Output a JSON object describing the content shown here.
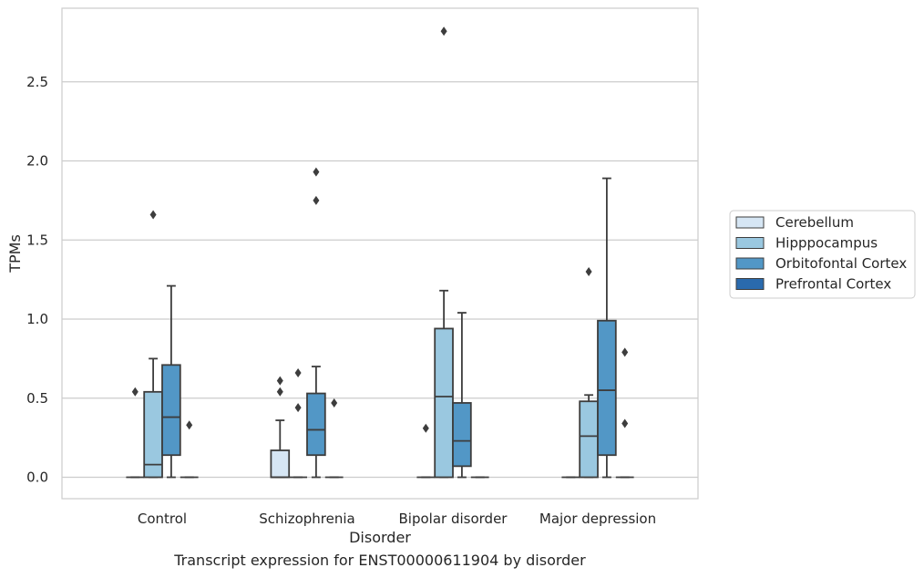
{
  "caption": "Transcript expression for ENST00000611904 by disorder",
  "chart_data": {
    "type": "boxplot",
    "xlabel": "Disorder",
    "ylabel": "TPMs",
    "ylim": [
      -0.14,
      2.97
    ],
    "yticks": [
      0.0,
      0.5,
      1.0,
      1.5,
      2.0,
      2.5
    ],
    "ytick_labels": [
      "0.0",
      "0.5",
      "1.0",
      "1.5",
      "2.0",
      "2.5"
    ],
    "grid": "horizontal",
    "legend_position": "center-right",
    "categories": [
      "Control",
      "Schizophrenia",
      "Bipolar disorder",
      "Major depression"
    ],
    "series": [
      {
        "name": "Cerebellum",
        "color": "#d6e6f4",
        "boxes": [
          {
            "whisker_low": 0,
            "q1": 0,
            "median": 0,
            "q3": 0,
            "whisker_high": 0,
            "outliers": [
              0.54
            ]
          },
          {
            "whisker_low": 0,
            "q1": 0,
            "median": 0,
            "q3": 0.17,
            "whisker_high": 0.36,
            "outliers": [
              0.54,
              0.61
            ]
          },
          {
            "whisker_low": 0,
            "q1": 0,
            "median": 0,
            "q3": 0,
            "whisker_high": 0,
            "outliers": [
              0.31
            ]
          },
          {
            "whisker_low": 0,
            "q1": 0,
            "median": 0,
            "q3": 0,
            "whisker_high": 0,
            "outliers": []
          }
        ]
      },
      {
        "name": "Hipppocampus",
        "color": "#9ac8e0",
        "boxes": [
          {
            "whisker_low": 0,
            "q1": 0,
            "median": 0.08,
            "q3": 0.54,
            "whisker_high": 0.75,
            "outliers": [
              1.66
            ]
          },
          {
            "whisker_low": 0,
            "q1": 0,
            "median": 0,
            "q3": 0,
            "whisker_high": 0,
            "outliers": [
              0.44,
              0.66
            ]
          },
          {
            "whisker_low": 0,
            "q1": 0,
            "median": 0.51,
            "q3": 0.94,
            "whisker_high": 1.18,
            "outliers": [
              2.82
            ]
          },
          {
            "whisker_low": 0,
            "q1": 0,
            "median": 0.26,
            "q3": 0.48,
            "whisker_high": 0.52,
            "outliers": [
              1.3
            ]
          }
        ]
      },
      {
        "name": "Orbitofontal Cortex",
        "color": "#5297c6",
        "boxes": [
          {
            "whisker_low": 0,
            "q1": 0.14,
            "median": 0.38,
            "q3": 0.71,
            "whisker_high": 1.21,
            "outliers": []
          },
          {
            "whisker_low": 0,
            "q1": 0.14,
            "median": 0.3,
            "q3": 0.53,
            "whisker_high": 0.7,
            "outliers": [
              1.75,
              1.93
            ]
          },
          {
            "whisker_low": 0,
            "q1": 0.07,
            "median": 0.23,
            "q3": 0.47,
            "whisker_high": 1.04,
            "outliers": []
          },
          {
            "whisker_low": 0,
            "q1": 0.14,
            "median": 0.55,
            "q3": 0.99,
            "whisker_high": 1.89,
            "outliers": []
          }
        ]
      },
      {
        "name": "Prefrontal Cortex",
        "color": "#2a6aad",
        "boxes": [
          {
            "whisker_low": 0,
            "q1": 0,
            "median": 0,
            "q3": 0,
            "whisker_high": 0,
            "outliers": [
              0.33
            ]
          },
          {
            "whisker_low": 0,
            "q1": 0,
            "median": 0,
            "q3": 0,
            "whisker_high": 0,
            "outliers": [
              0.47
            ]
          },
          {
            "whisker_low": 0,
            "q1": 0,
            "median": 0,
            "q3": 0,
            "whisker_high": 0,
            "outliers": []
          },
          {
            "whisker_low": 0,
            "q1": 0,
            "median": 0,
            "q3": 0,
            "whisker_high": 0,
            "outliers": [
              0.34,
              0.79
            ]
          }
        ]
      }
    ]
  }
}
